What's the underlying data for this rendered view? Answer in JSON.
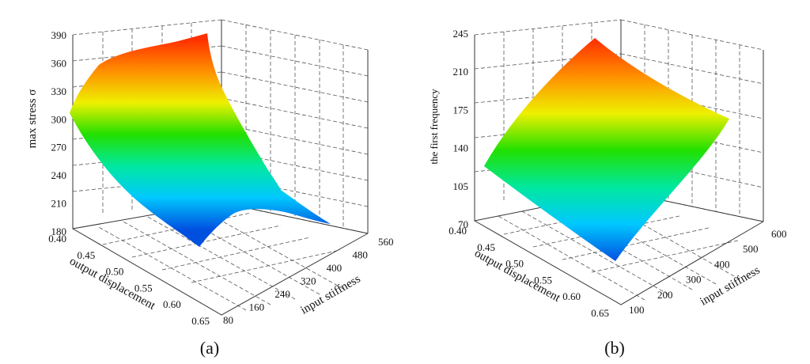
{
  "chart_data": [
    {
      "type": "surface3d",
      "panel_label": "(a)",
      "zlabel": "max stress σ",
      "xlabel": "output displacement",
      "ylabel": "input stiffness",
      "z_ticks": [
        "390",
        "360",
        "330",
        "300",
        "270",
        "240",
        "210",
        "180"
      ],
      "x_ticks": [
        "0.40",
        "0.45",
        "0.50",
        "0.55",
        "0.60",
        "0.65"
      ],
      "y_ticks": [
        "80",
        "160",
        "240",
        "320",
        "400",
        "480",
        "560"
      ],
      "zlim": [
        180,
        390
      ],
      "xlim": [
        0.4,
        0.65
      ],
      "ylim": [
        80,
        560
      ],
      "surface_corners": [
        {
          "x": 0.4,
          "y": 80,
          "z": 318
        },
        {
          "x": 0.4,
          "y": 560,
          "z": 388
        },
        {
          "x": 0.65,
          "y": 560,
          "z": 195
        },
        {
          "x": 0.65,
          "y": 80,
          "z": 180
        }
      ],
      "colormap": [
        "#0050e0",
        "#00c8ff",
        "#00e8a0",
        "#22e000",
        "#eef000",
        "#ff9000",
        "#ff3000"
      ]
    },
    {
      "type": "surface3d",
      "panel_label": "(b)",
      "zlabel": "the first frequency",
      "xlabel": "output displacement",
      "ylabel": "input stiffness",
      "z_ticks": [
        "245",
        "210",
        "175",
        "140",
        "105",
        "70"
      ],
      "x_ticks": [
        "0.40",
        "0.45",
        "0.50",
        "0.55",
        "0.60",
        "0.65"
      ],
      "y_ticks": [
        "100",
        "200",
        "300",
        "400",
        "500",
        "600"
      ],
      "zlim": [
        70,
        245
      ],
      "xlim": [
        0.4,
        0.65
      ],
      "ylim": [
        100,
        600
      ],
      "surface_corners": [
        {
          "x": 0.4,
          "y": 100,
          "z": 130
        },
        {
          "x": 0.4,
          "y": 600,
          "z": 240
        },
        {
          "x": 0.65,
          "y": 600,
          "z": 172
        },
        {
          "x": 0.65,
          "y": 100,
          "z": 75
        }
      ],
      "colormap": [
        "#0050e0",
        "#00c8ff",
        "#00e8a0",
        "#22e000",
        "#eef000",
        "#ff9000",
        "#ff3000"
      ]
    }
  ]
}
